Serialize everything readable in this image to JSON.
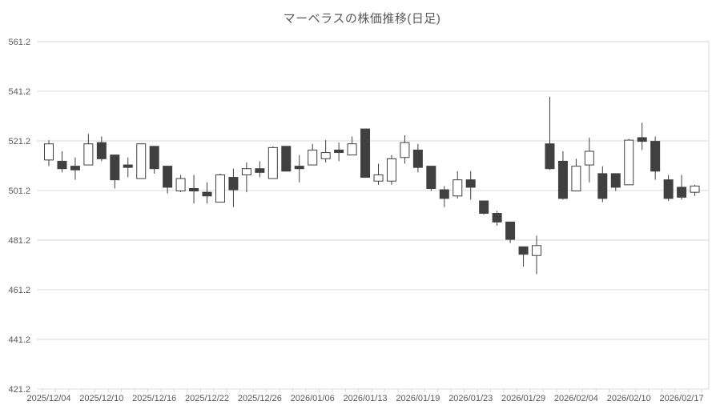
{
  "chart_data": {
    "type": "candlestick",
    "title": "マーベラスの株価推移(日足)",
    "y_axis": {
      "min": 421.2,
      "max": 561.2,
      "interval": 20,
      "tick_values": [
        561.2,
        541.2,
        521.2,
        501.2,
        481.2,
        461.2,
        441.2,
        421.2
      ],
      "tick_labels": [
        "561.2",
        "541.2",
        "521.2",
        "501.2",
        "481.2",
        "461.2",
        "441.2",
        "421.2"
      ]
    },
    "x_axis": {
      "tick_labels": [
        "2025/12/04",
        "2025/12/10",
        "2025/12/16",
        "2025/12/22",
        "2025/12/26",
        "2026/01/06",
        "2026/01/13",
        "2026/01/19",
        "2026/01/23",
        "2026/01/29",
        "2026/02/04",
        "2026/02/10",
        "2026/02/17"
      ],
      "label_candle_indices": [
        0,
        4,
        8,
        12,
        16,
        20,
        24,
        28,
        32,
        36,
        40,
        44,
        48
      ]
    },
    "candle_format": [
      "open",
      "high",
      "low",
      "close"
    ],
    "candles": [
      [
        513.5,
        521.5,
        511,
        520
      ],
      [
        513,
        517,
        508.5,
        510
      ],
      [
        511,
        514.5,
        505.5,
        509.5
      ],
      [
        511.5,
        524,
        511.5,
        520
      ],
      [
        520.5,
        523,
        513,
        514
      ],
      [
        515.5,
        515.5,
        502,
        505.5
      ],
      [
        511.5,
        514.5,
        506.5,
        510.5
      ],
      [
        506,
        520,
        506,
        520
      ],
      [
        519,
        519,
        508,
        510
      ],
      [
        511,
        511,
        500,
        502.5
      ],
      [
        501,
        507.5,
        500.5,
        506
      ],
      [
        502,
        507.5,
        496,
        501
      ],
      [
        500.5,
        504.5,
        496,
        499
      ],
      [
        496.5,
        508,
        496.5,
        507.5
      ],
      [
        506.5,
        510,
        494.5,
        501.5
      ],
      [
        507.5,
        512.5,
        500.5,
        510
      ],
      [
        510,
        513,
        506.5,
        508.5
      ],
      [
        506,
        519,
        506,
        518.5
      ],
      [
        519,
        519,
        509,
        509
      ],
      [
        511,
        515.5,
        504.5,
        510
      ],
      [
        511.5,
        520,
        511.5,
        517.5
      ],
      [
        514,
        521.5,
        512.5,
        516.5
      ],
      [
        517.5,
        520.5,
        513,
        516.5
      ],
      [
        515.5,
        523,
        515.5,
        520
      ],
      [
        526,
        526,
        506.5,
        506.5
      ],
      [
        505,
        512,
        503.5,
        507.5
      ],
      [
        505,
        515.5,
        503.5,
        514
      ],
      [
        514.5,
        523.5,
        512,
        520.5
      ],
      [
        517.5,
        520,
        508.5,
        510.5
      ],
      [
        511,
        511,
        501,
        502
      ],
      [
        501.5,
        503,
        494.5,
        498
      ],
      [
        499,
        509,
        498,
        505.5
      ],
      [
        505.5,
        509,
        497.5,
        502.5
      ],
      [
        497,
        497,
        491.5,
        492
      ],
      [
        492,
        493,
        487,
        488.5
      ],
      [
        488.5,
        488.5,
        480,
        481.5
      ],
      [
        478.5,
        478.5,
        470.5,
        475.5
      ],
      [
        475,
        483,
        467.5,
        479
      ],
      [
        520,
        539,
        509.5,
        510
      ],
      [
        513,
        517,
        497.5,
        498
      ],
      [
        501,
        514,
        501,
        511
      ],
      [
        511.5,
        522.5,
        504.5,
        517
      ],
      [
        508,
        511,
        496.5,
        498
      ],
      [
        508,
        508,
        501,
        502.5
      ],
      [
        503.5,
        522,
        503.5,
        521.5
      ],
      [
        522.5,
        528.5,
        517.5,
        521
      ],
      [
        521,
        523,
        505.5,
        509
      ],
      [
        505.5,
        507.5,
        497,
        498
      ],
      [
        502.5,
        507.5,
        497.5,
        498.5
      ],
      [
        500.5,
        503.5,
        499,
        503
      ]
    ],
    "colors": {
      "up_fill": "#ffffff",
      "down_fill": "#404040",
      "outline": "#404040",
      "wick": "#404040",
      "gridline": "#d9d9d9",
      "axis_line": "#d9d9d9",
      "axis_text": "#595959",
      "background": "#ffffff"
    },
    "layout_hints": {
      "grid": "horizontal-only",
      "legend": "none",
      "up_style": "hollow",
      "down_style": "filled"
    }
  }
}
